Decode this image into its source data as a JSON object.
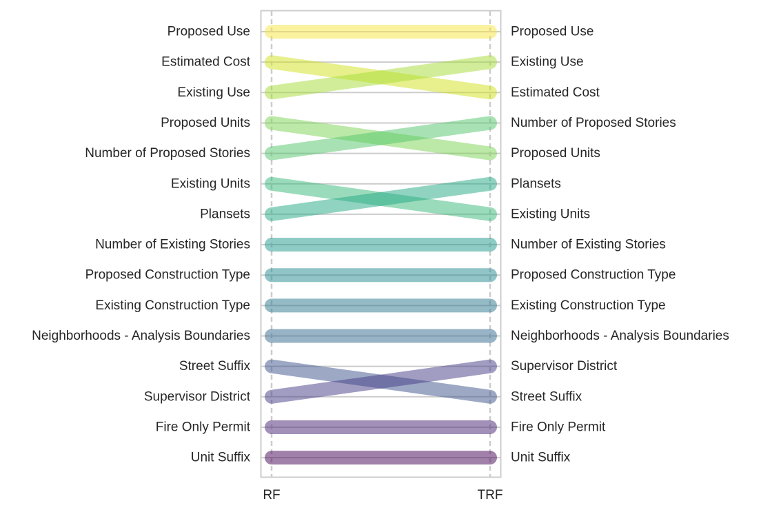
{
  "chart_data": {
    "type": "slope",
    "x_categories": [
      "RF",
      "TRF"
    ],
    "title": "",
    "xlabel": "",
    "ylabel": "",
    "grid": true,
    "colormap": "viridis",
    "series": [
      {
        "name": "Proposed Use",
        "rank_RF": 1,
        "rank_TRF": 1,
        "color": "#f7e541"
      },
      {
        "name": "Estimated Cost",
        "rank_RF": 2,
        "rank_TRF": 3,
        "color": "#d0e11c"
      },
      {
        "name": "Existing Use",
        "rank_RF": 3,
        "rank_TRF": 2,
        "color": "#a5db36"
      },
      {
        "name": "Proposed Units",
        "rank_RF": 4,
        "rank_TRF": 5,
        "color": "#7ad151"
      },
      {
        "name": "Number of Proposed Stories",
        "rank_RF": 5,
        "rank_TRF": 4,
        "color": "#52c569"
      },
      {
        "name": "Existing Units",
        "rank_RF": 6,
        "rank_TRF": 7,
        "color": "#35b779"
      },
      {
        "name": "Plansets",
        "rank_RF": 7,
        "rank_TRF": 6,
        "color": "#22a884"
      },
      {
        "name": "Number of Existing Stories",
        "rank_RF": 8,
        "rank_TRF": 8,
        "color": "#1f988b"
      },
      {
        "name": "Proposed Construction Type",
        "rank_RF": 9,
        "rank_TRF": 9,
        "color": "#23898e"
      },
      {
        "name": "Existing Construction Type",
        "rank_RF": 10,
        "rank_TRF": 10,
        "color": "#2a788e"
      },
      {
        "name": "Neighborhoods - Analysis Boundaries",
        "rank_RF": 11,
        "rank_TRF": 11,
        "color": "#31688e"
      },
      {
        "name": "Street Suffix",
        "rank_RF": 12,
        "rank_TRF": 13,
        "color": "#3b528b"
      },
      {
        "name": "Supervisor District",
        "rank_RF": 13,
        "rank_TRF": 12,
        "color": "#443a83"
      },
      {
        "name": "Fire Only Permit",
        "rank_RF": 14,
        "rank_TRF": 14,
        "color": "#482173"
      },
      {
        "name": "Unit Suffix",
        "rank_RF": 15,
        "rank_TRF": 15,
        "color": "#440154"
      }
    ]
  }
}
